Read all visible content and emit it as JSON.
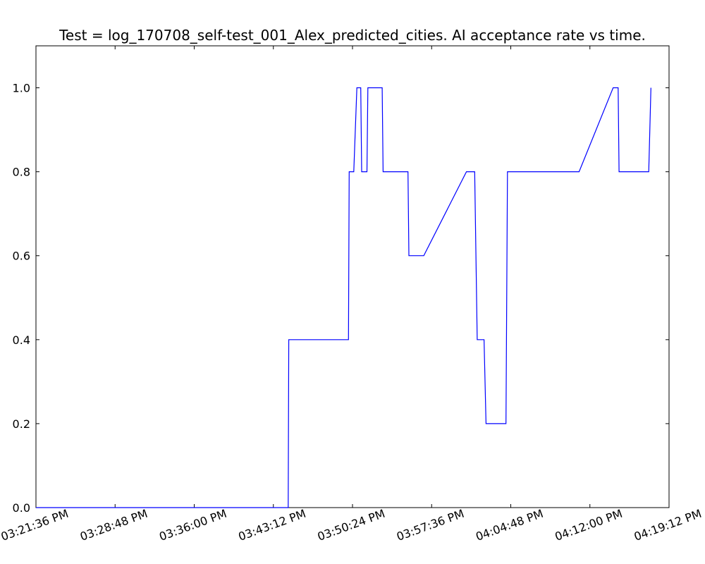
{
  "chart_data": {
    "type": "line",
    "title": "Test = log_170708_self-test_001_Alex_predicted_cities. AI acceptance rate vs time.",
    "xlabel": "",
    "ylabel": "",
    "x_ticks": [
      "03:21:36 PM",
      "03:28:48 PM",
      "03:36:00 PM",
      "03:43:12 PM",
      "03:50:24 PM",
      "03:57:36 PM",
      "04:04:48 PM",
      "04:12:00 PM",
      "04:19:12 PM"
    ],
    "x_range": [
      "03:21:36 PM",
      "04:19:12 PM"
    ],
    "y_ticks": [
      "0.0",
      "0.2",
      "0.4",
      "0.6",
      "0.8",
      "1.0"
    ],
    "ylim": [
      0,
      1.1
    ],
    "grid": false,
    "series": [
      {
        "color": "#0000ff",
        "x": [
          "03:21:36 PM",
          "03:44:33 PM",
          "03:44:36 PM",
          "03:50:02 PM",
          "03:50:06 PM",
          "03:50:31 PM",
          "03:50:48 PM",
          "03:51:09 PM",
          "03:51:14 PM",
          "03:51:43 PM",
          "03:51:48 PM",
          "03:53:06 PM",
          "03:53:11 PM",
          "03:55:27 PM",
          "03:55:32 PM",
          "03:56:53 PM",
          "04:00:46 PM",
          "04:01:31 PM",
          "04:01:45 PM",
          "04:02:22 PM",
          "04:02:33 PM",
          "04:04:22 PM",
          "04:04:30 PM",
          "04:11:01 PM",
          "04:14:07 PM",
          "04:14:34 PM",
          "04:14:39 PM",
          "04:17:21 PM",
          "04:17:33 PM"
        ],
        "y": [
          0,
          0,
          0.4,
          0.4,
          0.8,
          0.8,
          1.0,
          1.0,
          0.8,
          0.8,
          1.0,
          1.0,
          0.8,
          0.8,
          0.6,
          0.6,
          0.8,
          0.8,
          0.4,
          0.4,
          0.2,
          0.2,
          0.8,
          0.8,
          1.0,
          1.0,
          0.8,
          0.8,
          1.0
        ]
      }
    ]
  }
}
